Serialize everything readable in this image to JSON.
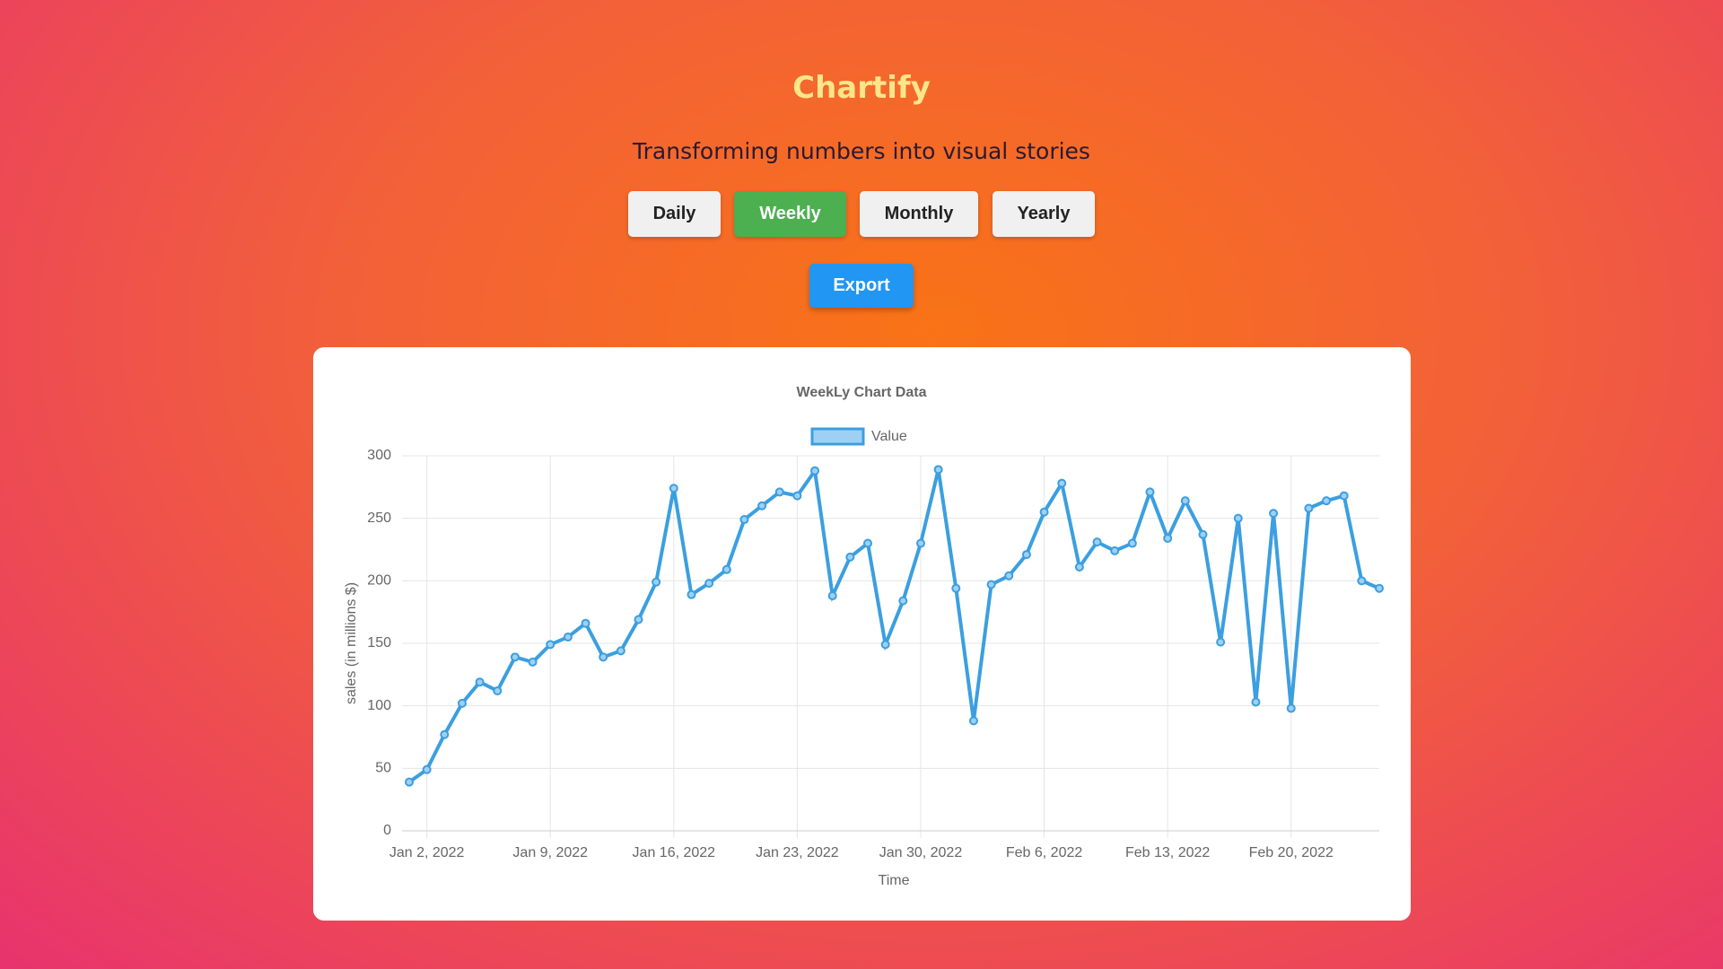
{
  "header": {
    "title": "Chartify",
    "subtitle": "Transforming numbers into visual stories"
  },
  "buttons": [
    {
      "label": "Daily",
      "selected": false
    },
    {
      "label": "Weekly",
      "selected": true
    },
    {
      "label": "Monthly",
      "selected": false
    },
    {
      "label": "Yearly",
      "selected": false
    }
  ],
  "export_button": {
    "label": "Export"
  },
  "chart_data": {
    "type": "line",
    "title": "WeekLy Chart Data",
    "x_label": "Time",
    "y_label": "sales (in millions $)",
    "x": [
      "2022-01-01",
      "2022-01-02",
      "2022-01-03",
      "2022-01-04",
      "2022-01-05",
      "2022-01-06",
      "2022-01-07",
      "2022-01-08",
      "2022-01-09",
      "2022-01-10",
      "2022-01-11",
      "2022-01-12",
      "2022-01-13",
      "2022-01-14",
      "2022-01-15",
      "2022-01-16",
      "2022-01-17",
      "2022-01-18",
      "2022-01-19",
      "2022-01-20",
      "2022-01-21",
      "2022-01-22",
      "2022-01-23",
      "2022-01-24",
      "2022-01-25",
      "2022-01-26",
      "2022-01-27",
      "2022-01-28",
      "2022-01-29",
      "2022-01-30",
      "2022-01-31",
      "2022-02-01",
      "2022-02-02",
      "2022-02-03",
      "2022-02-04",
      "2022-02-05",
      "2022-02-06",
      "2022-02-07",
      "2022-02-08",
      "2022-02-09",
      "2022-02-10",
      "2022-02-11",
      "2022-02-12",
      "2022-02-13",
      "2022-02-14",
      "2022-02-15",
      "2022-02-16",
      "2022-02-17",
      "2022-02-18",
      "2022-02-19",
      "2022-02-20",
      "2022-02-21",
      "2022-02-22",
      "2022-02-23",
      "2022-02-24",
      "2022-02-25"
    ],
    "series": [
      {
        "name": "Value",
        "color": "#3b9fe0",
        "values": [
          39,
          49,
          77,
          102,
          119,
          112,
          139,
          135,
          149,
          155,
          166,
          139,
          144,
          169,
          199,
          274,
          189,
          198,
          209,
          249,
          260,
          271,
          268,
          288,
          188,
          219,
          230,
          149,
          184,
          230,
          289,
          194,
          88,
          197,
          204,
          221,
          255,
          278,
          211,
          231,
          224,
          230,
          271,
          234,
          264,
          237,
          151,
          250,
          103,
          254,
          98,
          258,
          264,
          268,
          200,
          194
        ]
      }
    ],
    "xlim": [
      "2022-01-01",
      "2022-02-25"
    ],
    "ylim": [
      0,
      300
    ],
    "yticks": [
      0,
      50,
      100,
      150,
      200,
      250,
      300
    ],
    "xticks": [
      {
        "value": "2022-01-02",
        "label": "Jan 2, 2022"
      },
      {
        "value": "2022-01-09",
        "label": "Jan 9, 2022"
      },
      {
        "value": "2022-01-16",
        "label": "Jan 16, 2022"
      },
      {
        "value": "2022-01-23",
        "label": "Jan 23, 2022"
      },
      {
        "value": "2022-01-30",
        "label": "Jan 30, 2022"
      },
      {
        "value": "2022-02-06",
        "label": "Feb 6, 2022"
      },
      {
        "value": "2022-02-13",
        "label": "Feb 13, 2022"
      },
      {
        "value": "2022-02-20",
        "label": "Feb 20, 2022"
      }
    ],
    "grid": true,
    "legend": "top"
  }
}
